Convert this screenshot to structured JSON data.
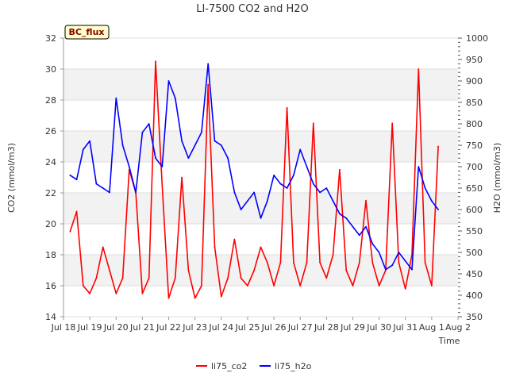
{
  "chart_data": {
    "type": "line",
    "title": "LI-7500 CO2 and H2O",
    "badge": "BC_flux",
    "xlabel": "Time",
    "ylabel_left": "CO2 (mmol/m3)",
    "ylabel_right": "H2O (mmol/m3)",
    "x_tick_labels": [
      "Jul 18",
      "Jul 19",
      "Jul 20",
      "Jul 21",
      "Jul 22",
      "Jul 23",
      "Jul 24",
      "Jul 25",
      "Jul 26",
      "Jul 27",
      "Jul 28",
      "Jul 29",
      "Jul 30",
      "Jul 31",
      "Aug 1",
      "Aug 2"
    ],
    "x_range": [
      "2024-07-18",
      "2024-08-02"
    ],
    "ylim_left": [
      14,
      32
    ],
    "yticks_left": [
      14,
      16,
      18,
      20,
      22,
      24,
      26,
      28,
      30,
      32
    ],
    "ylim_right": [
      350,
      1000
    ],
    "yticks_right": [
      350,
      400,
      450,
      500,
      550,
      600,
      650,
      700,
      750,
      800,
      850,
      900,
      950,
      1000
    ],
    "background_bands": true,
    "legend_position": "bottom-center",
    "colors": {
      "co2": "#ff0000",
      "h2o": "#0000ff",
      "grid_band": "#f2f2f2",
      "badge_bg": "#ffffcc"
    },
    "series": [
      {
        "name": "li75_co2",
        "axis": "left",
        "x": [
          "Jul 18 06:00",
          "Jul 18 12:00",
          "Jul 18 18:00",
          "Jul 19 00:00",
          "Jul 19 06:00",
          "Jul 19 12:00",
          "Jul 19 18:00",
          "Jul 20 00:00",
          "Jul 20 06:00",
          "Jul 20 12:00",
          "Jul 20 18:00",
          "Jul 21 00:00",
          "Jul 21 06:00",
          "Jul 21 12:00",
          "Jul 21 18:00",
          "Jul 22 00:00",
          "Jul 22 06:00",
          "Jul 22 12:00",
          "Jul 22 18:00",
          "Jul 23 00:00",
          "Jul 23 06:00",
          "Jul 23 12:00",
          "Jul 23 18:00",
          "Jul 24 00:00",
          "Jul 24 06:00",
          "Jul 24 12:00",
          "Jul 24 18:00",
          "Jul 25 00:00",
          "Jul 25 06:00",
          "Jul 25 12:00",
          "Jul 25 18:00",
          "Jul 26 00:00",
          "Jul 26 06:00",
          "Jul 26 12:00",
          "Jul 26 18:00",
          "Jul 27 00:00",
          "Jul 27 06:00",
          "Jul 27 12:00",
          "Jul 27 18:00",
          "Jul 28 00:00",
          "Jul 28 06:00",
          "Jul 28 12:00",
          "Jul 28 18:00",
          "Jul 29 00:00",
          "Jul 29 06:00",
          "Jul 29 12:00",
          "Jul 29 18:00",
          "Jul 30 00:00",
          "Jul 30 06:00",
          "Jul 30 12:00",
          "Jul 30 18:00",
          "Jul 31 00:00",
          "Jul 31 06:00",
          "Jul 31 12:00",
          "Jul 31 18:00",
          "Aug 1 00:00",
          "Aug 1 06:00"
        ],
        "values": [
          19.5,
          20.8,
          16.0,
          15.5,
          16.5,
          18.5,
          17.0,
          15.5,
          16.5,
          23.5,
          22.0,
          15.5,
          16.5,
          30.5,
          22.5,
          15.2,
          16.5,
          23.0,
          17.0,
          15.2,
          16.0,
          29.0,
          18.5,
          15.3,
          16.5,
          19.0,
          16.5,
          16.0,
          17.0,
          18.5,
          17.5,
          16.0,
          17.5,
          27.5,
          17.5,
          16.0,
          17.5,
          26.5,
          17.5,
          16.5,
          18.0,
          23.5,
          17.0,
          16.0,
          17.5,
          21.5,
          17.5,
          16.0,
          17.0,
          26.5,
          17.5,
          15.8,
          18.0,
          30.0,
          17.5,
          16.0,
          25.0
        ]
      },
      {
        "name": "li75_h2o",
        "axis": "right",
        "x": [
          "Jul 18 06:00",
          "Jul 18 12:00",
          "Jul 18 18:00",
          "Jul 19 00:00",
          "Jul 19 06:00",
          "Jul 19 12:00",
          "Jul 19 18:00",
          "Jul 20 00:00",
          "Jul 20 06:00",
          "Jul 20 12:00",
          "Jul 20 18:00",
          "Jul 21 00:00",
          "Jul 21 06:00",
          "Jul 21 12:00",
          "Jul 21 18:00",
          "Jul 22 00:00",
          "Jul 22 06:00",
          "Jul 22 12:00",
          "Jul 22 18:00",
          "Jul 23 00:00",
          "Jul 23 06:00",
          "Jul 23 12:00",
          "Jul 23 18:00",
          "Jul 24 00:00",
          "Jul 24 06:00",
          "Jul 24 12:00",
          "Jul 24 18:00",
          "Jul 25 00:00",
          "Jul 25 06:00",
          "Jul 25 12:00",
          "Jul 25 18:00",
          "Jul 26 00:00",
          "Jul 26 06:00",
          "Jul 26 12:00",
          "Jul 26 18:00",
          "Jul 27 00:00",
          "Jul 27 06:00",
          "Jul 27 12:00",
          "Jul 27 18:00",
          "Jul 28 00:00",
          "Jul 28 06:00",
          "Jul 28 12:00",
          "Jul 28 18:00",
          "Jul 29 00:00",
          "Jul 29 06:00",
          "Jul 29 12:00",
          "Jul 29 18:00",
          "Jul 30 00:00",
          "Jul 30 06:00",
          "Jul 30 12:00",
          "Jul 30 18:00",
          "Jul 31 00:00",
          "Jul 31 06:00",
          "Jul 31 12:00",
          "Jul 31 18:00",
          "Aug 1 00:00",
          "Aug 1 06:00"
        ],
        "values": [
          680,
          670,
          740,
          760,
          660,
          650,
          640,
          860,
          750,
          700,
          640,
          780,
          800,
          720,
          700,
          900,
          860,
          760,
          720,
          750,
          780,
          940,
          760,
          750,
          720,
          640,
          600,
          620,
          640,
          580,
          620,
          680,
          660,
          650,
          680,
          740,
          700,
          660,
          640,
          650,
          620,
          590,
          580,
          560,
          540,
          560,
          520,
          500,
          460,
          470,
          500,
          480,
          460,
          700,
          650,
          620,
          600
        ]
      }
    ]
  }
}
